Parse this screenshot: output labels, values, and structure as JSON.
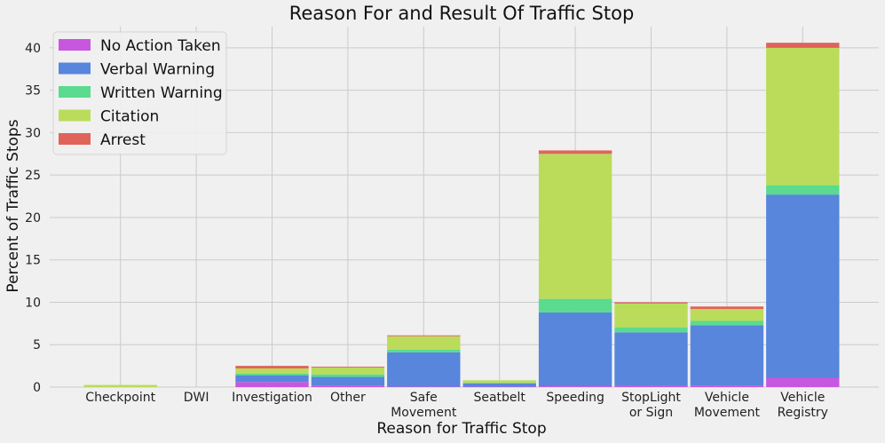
{
  "chart_data": {
    "type": "bar",
    "stacked": true,
    "title": "Reason For and Result Of Traffic Stop",
    "xlabel": "Reason for Traffic Stop",
    "ylabel": "Percent of Traffic Stops",
    "ylim": [
      0,
      42.5
    ],
    "yticks": [
      0,
      5,
      10,
      15,
      20,
      25,
      30,
      35,
      40
    ],
    "grid": true,
    "legend_position": "top-left",
    "categories": [
      [
        "Checkpoint"
      ],
      [
        "DWI"
      ],
      [
        "Investigation"
      ],
      [
        "Other"
      ],
      [
        "Safe",
        "Movement"
      ],
      [
        "Seatbelt"
      ],
      [
        "Speeding"
      ],
      [
        "StopLight",
        "or Sign"
      ],
      [
        "Vehicle",
        "Movement"
      ],
      [
        "Vehicle",
        "Registry"
      ]
    ],
    "series": [
      {
        "name": "No Action Taken",
        "color": "#c757de",
        "values": [
          0.0,
          0.0,
          0.6,
          0.2,
          0.05,
          0.05,
          0.1,
          0.15,
          0.2,
          1.1
        ]
      },
      {
        "name": "Verbal Warning",
        "color": "#5786dc",
        "values": [
          0.0,
          0.0,
          0.8,
          1.0,
          4.05,
          0.4,
          8.7,
          6.3,
          7.1,
          21.6
        ]
      },
      {
        "name": "Written Warning",
        "color": "#5adb8f",
        "values": [
          0.0,
          0.0,
          0.2,
          0.3,
          0.3,
          0.05,
          1.6,
          0.6,
          0.5,
          1.1
        ]
      },
      {
        "name": "Citation",
        "color": "#badc5a",
        "values": [
          0.25,
          0.0,
          0.6,
          0.8,
          1.6,
          0.3,
          17.1,
          2.8,
          1.4,
          16.2
        ]
      },
      {
        "name": "Arrest",
        "color": "#e0635a",
        "values": [
          0.0,
          0.0,
          0.3,
          0.1,
          0.1,
          0.0,
          0.4,
          0.15,
          0.3,
          0.6
        ]
      }
    ]
  }
}
